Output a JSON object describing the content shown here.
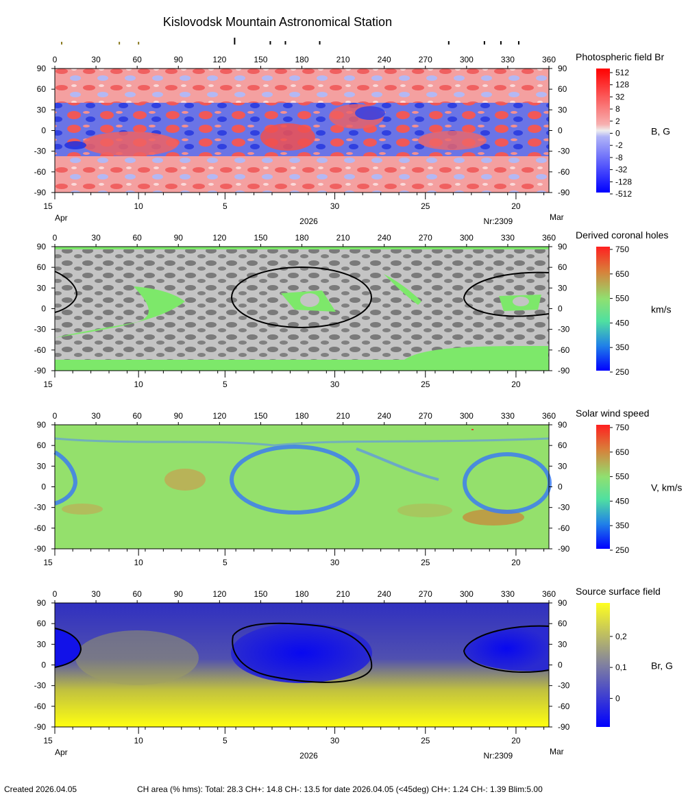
{
  "title": "Kislovodsk Mountain Astronomical Station",
  "top_ticks": {
    "olive": [
      5,
      47,
      61
    ],
    "black_tall": [
      131
    ],
    "black_short": [
      157,
      168,
      193,
      287,
      313,
      325,
      338
    ]
  },
  "axes": {
    "lon_ticks": [
      "0",
      "30",
      "60",
      "90",
      "120",
      "150",
      "180",
      "210",
      "240",
      "270",
      "300",
      "330",
      "360"
    ],
    "lat_ticks": [
      "90",
      "60",
      "30",
      "0",
      "-30",
      "-60",
      "-90"
    ],
    "date_labels": [
      "15",
      "10",
      "5",
      "30",
      "25",
      "20"
    ],
    "date_lon": [
      0,
      61,
      124,
      204,
      270,
      336
    ]
  },
  "bottom_labels": {
    "left": "Apr",
    "right": "Mar",
    "year": "2026",
    "rotation": "Nr:2309"
  },
  "panels": [
    {
      "id": "photospheric",
      "title": "Photospheric field Br",
      "unit": "B, G",
      "colorbar_labels": [
        "512",
        "128",
        "32",
        "8",
        "2",
        "0",
        "-2",
        "-8",
        "-32",
        "-128",
        "-512"
      ],
      "show_top_axis": true,
      "show_month_labels": true
    },
    {
      "id": "coronal-holes",
      "title": "Derived coronal holes",
      "unit": "km/s",
      "colorbar_labels": [
        "750",
        "650",
        "550",
        "450",
        "350",
        "250"
      ],
      "show_top_axis": true,
      "show_month_labels": false
    },
    {
      "id": "solar-wind",
      "title": "Solar wind speed",
      "unit": "V, km/s",
      "colorbar_labels": [
        "750",
        "650",
        "550",
        "450",
        "350",
        "250"
      ],
      "show_top_axis": true,
      "show_month_labels": false
    },
    {
      "id": "source-surface",
      "title": "Source surface field",
      "unit": "Br, G",
      "colorbar_labels": [
        "0,2",
        "0,1",
        "0"
      ],
      "show_top_axis": true,
      "show_month_labels": true
    }
  ],
  "colors": {
    "photo_red": "#f26b6b",
    "photo_pink": "#f7a9a9",
    "photo_blue": "#5b67e8",
    "photo_lightblue": "#a8aef2",
    "ch_gray_light": "#c0c0c0",
    "ch_gray_dark": "#7c7c7c",
    "ch_green": "#7de86a",
    "wind_green": "#8fe06e",
    "wind_blue": "#3d7cf0",
    "wind_orange": "#c98a3a",
    "ss_blue": "#1a1ae0",
    "ss_yellow": "#f0f020"
  },
  "chart_data": [
    {
      "type": "heatmap",
      "title": "Photospheric field Br",
      "xlabel": "",
      "ylabel": "",
      "xlim": [
        0,
        360
      ],
      "ylim": [
        -90,
        90
      ],
      "colorbar": {
        "label": "B, G",
        "ticks": [
          512,
          128,
          32,
          8,
          2,
          0,
          -2,
          -8,
          -32,
          -128,
          -512
        ]
      }
    },
    {
      "type": "heatmap",
      "title": "Derived coronal holes",
      "xlim": [
        0,
        360
      ],
      "ylim": [
        -90,
        90
      ],
      "colorbar": {
        "label": "km/s",
        "range": [
          250,
          750
        ],
        "ticks": [
          750,
          650,
          550,
          450,
          350,
          250
        ]
      }
    },
    {
      "type": "heatmap",
      "title": "Solar wind speed",
      "xlim": [
        0,
        360
      ],
      "ylim": [
        -90,
        90
      ],
      "colorbar": {
        "label": "V, km/s",
        "range": [
          250,
          750
        ],
        "ticks": [
          750,
          650,
          550,
          450,
          350,
          250
        ]
      }
    },
    {
      "type": "heatmap",
      "title": "Source surface field",
      "xlim": [
        0,
        360
      ],
      "ylim": [
        -90,
        90
      ],
      "colorbar": {
        "label": "Br, G",
        "ticks": [
          0.2,
          0.1,
          0
        ]
      }
    }
  ],
  "footer": {
    "created": "Created  2026.04.05",
    "stats": "CH area (% hms): Total: 28.3 CH+: 14.8   CH-: 13.5 for date 2026.04.05 (<45deg) CH+: 1.24    CH-: 1.39 Blim:5.00"
  }
}
